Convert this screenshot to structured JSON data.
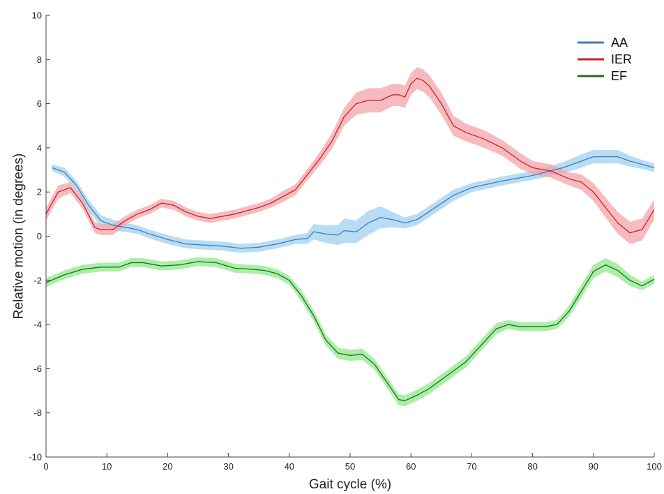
{
  "chart_data": {
    "type": "line",
    "title": "",
    "xlabel": "Gait cycle (%)",
    "ylabel": "Relative motion (in degrees)",
    "xlim": [
      0,
      100
    ],
    "ylim": [
      -10,
      10
    ],
    "xticks": [
      "0",
      "10",
      "20",
      "30",
      "40",
      "50",
      "60",
      "70",
      "80",
      "90",
      "100"
    ],
    "yticks": [
      "-10",
      "-8",
      "-6",
      "-4",
      "-2",
      "0",
      "2",
      "4",
      "6",
      "8",
      "10"
    ],
    "grid": false,
    "legend_position": "top-right",
    "series": [
      {
        "name": "AA",
        "color": "#3f7fb5",
        "band_color": "#9fd0f0",
        "x": [
          1,
          3,
          5,
          7,
          9,
          11,
          13,
          15,
          17,
          20,
          23,
          26,
          29,
          32,
          35,
          38,
          41,
          43,
          44,
          46,
          48,
          49,
          51,
          53,
          55,
          57,
          59,
          61,
          64,
          67,
          70,
          75,
          80,
          85,
          88,
          90,
          92,
          94,
          96,
          98,
          100
        ],
        "y": [
          3.1,
          2.9,
          2.3,
          1.4,
          0.7,
          0.5,
          0.4,
          0.3,
          0.1,
          -0.15,
          -0.35,
          -0.4,
          -0.45,
          -0.55,
          -0.5,
          -0.35,
          -0.15,
          -0.1,
          0.2,
          0.1,
          0.05,
          0.25,
          0.2,
          0.6,
          0.85,
          0.75,
          0.6,
          0.75,
          1.3,
          1.85,
          2.2,
          2.5,
          2.75,
          3.1,
          3.4,
          3.6,
          3.6,
          3.6,
          3.4,
          3.25,
          3.1
        ],
        "band": [
          0.15,
          0.2,
          0.2,
          0.25,
          0.25,
          0.25,
          0.2,
          0.2,
          0.2,
          0.2,
          0.2,
          0.2,
          0.2,
          0.2,
          0.2,
          0.2,
          0.2,
          0.25,
          0.35,
          0.4,
          0.45,
          0.55,
          0.5,
          0.55,
          0.5,
          0.35,
          0.25,
          0.25,
          0.25,
          0.25,
          0.2,
          0.2,
          0.2,
          0.25,
          0.3,
          0.3,
          0.3,
          0.3,
          0.25,
          0.2,
          0.2
        ]
      },
      {
        "name": "IER",
        "color": "#c0262d",
        "band_color": "#f4a3a8",
        "x": [
          0,
          2,
          4,
          6,
          8,
          9,
          11,
          13,
          15,
          17,
          19,
          21,
          23,
          25,
          27,
          29,
          31,
          33,
          35,
          37,
          39,
          41,
          43,
          45,
          47,
          49,
          51,
          53,
          55,
          57,
          58,
          59,
          60,
          61,
          62,
          63,
          65,
          67,
          69,
          72,
          75,
          78,
          80,
          83,
          86,
          88,
          90,
          92,
          94,
          96,
          98,
          100
        ],
        "y": [
          1.0,
          2.0,
          2.2,
          1.5,
          0.4,
          0.3,
          0.3,
          0.7,
          1.0,
          1.2,
          1.5,
          1.4,
          1.1,
          0.9,
          0.8,
          0.9,
          1.0,
          1.15,
          1.3,
          1.5,
          1.8,
          2.1,
          2.8,
          3.5,
          4.3,
          5.4,
          6.0,
          6.15,
          6.15,
          6.4,
          6.4,
          6.3,
          6.9,
          7.15,
          7.05,
          6.8,
          6.0,
          5.0,
          4.7,
          4.4,
          4.0,
          3.4,
          3.1,
          2.95,
          2.6,
          2.45,
          2.0,
          1.3,
          0.6,
          0.15,
          0.3,
          1.2
        ],
        "band": [
          0.3,
          0.3,
          0.25,
          0.25,
          0.25,
          0.25,
          0.25,
          0.2,
          0.2,
          0.2,
          0.2,
          0.2,
          0.2,
          0.2,
          0.2,
          0.2,
          0.2,
          0.2,
          0.2,
          0.2,
          0.25,
          0.25,
          0.25,
          0.3,
          0.35,
          0.4,
          0.5,
          0.55,
          0.55,
          0.5,
          0.5,
          0.5,
          0.5,
          0.5,
          0.5,
          0.5,
          0.5,
          0.45,
          0.4,
          0.4,
          0.35,
          0.35,
          0.3,
          0.3,
          0.3,
          0.35,
          0.4,
          0.45,
          0.5,
          0.5,
          0.5,
          0.45
        ]
      },
      {
        "name": "EF",
        "color": "#1f6b1f",
        "band_color": "#8fe88a",
        "x": [
          0,
          3,
          6,
          9,
          12,
          14,
          16,
          19,
          22,
          25,
          28,
          31,
          34,
          36,
          38,
          40,
          42,
          44,
          46,
          48,
          50,
          52,
          54,
          56,
          58,
          59,
          61,
          63,
          66,
          69,
          72,
          74,
          76,
          78,
          80,
          82,
          84,
          86,
          88,
          90,
          92,
          94,
          96,
          98,
          100
        ],
        "y": [
          -2.1,
          -1.75,
          -1.5,
          -1.4,
          -1.4,
          -1.2,
          -1.2,
          -1.35,
          -1.3,
          -1.15,
          -1.2,
          -1.45,
          -1.5,
          -1.55,
          -1.7,
          -2.0,
          -2.7,
          -3.6,
          -4.7,
          -5.3,
          -5.4,
          -5.35,
          -5.8,
          -6.6,
          -7.4,
          -7.45,
          -7.2,
          -6.9,
          -6.3,
          -5.7,
          -4.8,
          -4.2,
          -4.0,
          -4.1,
          -4.1,
          -4.1,
          -4.0,
          -3.4,
          -2.5,
          -1.6,
          -1.3,
          -1.55,
          -2.0,
          -2.25,
          -1.95
        ],
        "band": [
          0.2,
          0.2,
          0.2,
          0.2,
          0.2,
          0.2,
          0.2,
          0.2,
          0.2,
          0.2,
          0.2,
          0.2,
          0.2,
          0.2,
          0.2,
          0.2,
          0.25,
          0.25,
          0.25,
          0.25,
          0.25,
          0.25,
          0.25,
          0.25,
          0.25,
          0.25,
          0.25,
          0.25,
          0.25,
          0.25,
          0.25,
          0.25,
          0.2,
          0.2,
          0.2,
          0.2,
          0.2,
          0.25,
          0.3,
          0.3,
          0.3,
          0.3,
          0.25,
          0.2,
          0.2
        ]
      }
    ]
  }
}
